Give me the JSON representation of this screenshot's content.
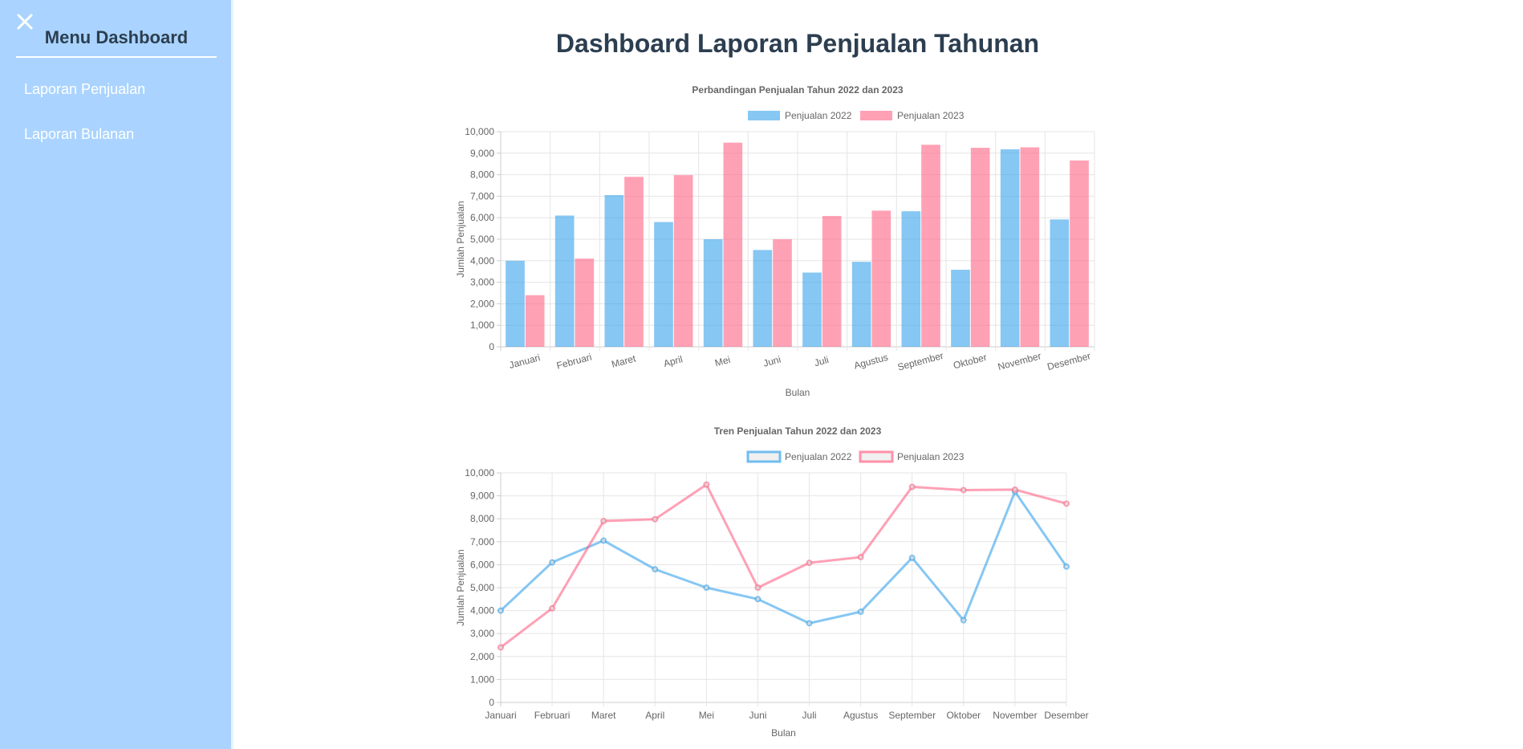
{
  "sidebar": {
    "close_icon": "close-icon",
    "title": "Menu Dashboard",
    "items": [
      {
        "label": "Laporan Penjualan"
      },
      {
        "label": "Laporan Bulanan"
      }
    ]
  },
  "main": {
    "title": "Dashboard Laporan Penjualan Tahunan"
  },
  "colors": {
    "sidebar_bg": "#aad4ff",
    "series_2022": "#36a2eb",
    "series_2023": "#ff6384",
    "title_text": "#2c3e50"
  },
  "chart_data": [
    {
      "type": "bar",
      "title": "Perbandingan Penjualan Tahun 2022 dan 2023",
      "xlabel": "Bulan",
      "ylabel": "Jumlah Penjualan",
      "ylim": [
        0,
        10000
      ],
      "yticks": [
        "0",
        "1,000",
        "2,000",
        "3,000",
        "4,000",
        "5,000",
        "6,000",
        "7,000",
        "8,000",
        "9,000",
        "10,000"
      ],
      "legend": "top",
      "grid": true,
      "categories": [
        "Januari",
        "Februari",
        "Maret",
        "April",
        "Mei",
        "Juni",
        "Juli",
        "Agustus",
        "September",
        "Oktober",
        "November",
        "Desember"
      ],
      "series": [
        {
          "name": "Penjualan 2022",
          "values": [
            4000,
            6100,
            7050,
            5800,
            5000,
            4500,
            3450,
            3950,
            6300,
            3580,
            9180,
            5920
          ]
        },
        {
          "name": "Penjualan 2023",
          "values": [
            2400,
            4100,
            7900,
            7980,
            9490,
            5000,
            6080,
            6330,
            9390,
            9250,
            9270,
            8660
          ]
        }
      ]
    },
    {
      "type": "line",
      "title": "Tren Penjualan Tahun 2022 dan 2023",
      "xlabel": "Bulan",
      "ylabel": "Jumlah Penjualan",
      "ylim": [
        0,
        10000
      ],
      "yticks": [
        "0",
        "1,000",
        "2,000",
        "3,000",
        "4,000",
        "5,000",
        "6,000",
        "7,000",
        "8,000",
        "9,000",
        "10,000"
      ],
      "legend": "top",
      "grid": true,
      "categories": [
        "Januari",
        "Februari",
        "Maret",
        "April",
        "Mei",
        "Juni",
        "Juli",
        "Agustus",
        "September",
        "Oktober",
        "November",
        "Desember"
      ],
      "series": [
        {
          "name": "Penjualan 2022",
          "values": [
            4000,
            6100,
            7050,
            5800,
            5000,
            4500,
            3450,
            3950,
            6300,
            3580,
            9180,
            5920
          ]
        },
        {
          "name": "Penjualan 2023",
          "values": [
            2400,
            4100,
            7900,
            7980,
            9490,
            5000,
            6080,
            6330,
            9390,
            9250,
            9270,
            8660
          ]
        }
      ]
    }
  ]
}
